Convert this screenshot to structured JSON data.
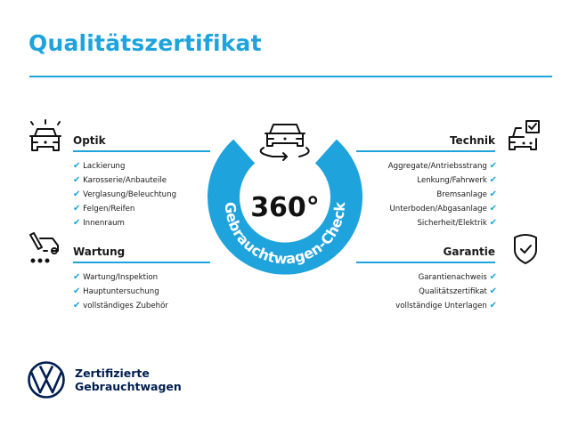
{
  "title": "Qualitätszertifikat",
  "colors": {
    "accent": "#1ea3dc",
    "brand": "#001e50",
    "text": "#1a1a1a"
  },
  "center": {
    "value": "360°",
    "ring_text": "Gebrauchtwagen-Check",
    "icon": "car-rotate-icon"
  },
  "sections": {
    "optik": {
      "icon": "car-lights-icon",
      "heading": "Optik",
      "items": [
        "Lackierung",
        "Karosserie/Anbauteile",
        "Verglasung/Beleuchtung",
        "Felgen/Reifen",
        "Innenraum"
      ]
    },
    "wartung": {
      "icon": "car-service-icon",
      "heading": "Wartung",
      "items": [
        "Wartung/Inspektion",
        "Hauptuntersuchung",
        "vollständiges Zubehör"
      ]
    },
    "technik": {
      "icon": "car-checklist-icon",
      "heading": "Technik",
      "items": [
        "Aggregate/Antriebsstrang",
        "Lenkung/Fahrwerk",
        "Bremsanlage",
        "Unterboden/Abgasanlage",
        "Sicherheit/Elektrik"
      ]
    },
    "garantie": {
      "icon": "shield-check-icon",
      "heading": "Garantie",
      "items": [
        "Garantienachweis",
        "Qualitätszertifikat",
        "vollständige Unterlagen"
      ]
    }
  },
  "check_glyph": "✔",
  "brand": {
    "line1": "Zertifizierte",
    "line2": "Gebrauchtwagen",
    "logo": "vw-logo"
  }
}
